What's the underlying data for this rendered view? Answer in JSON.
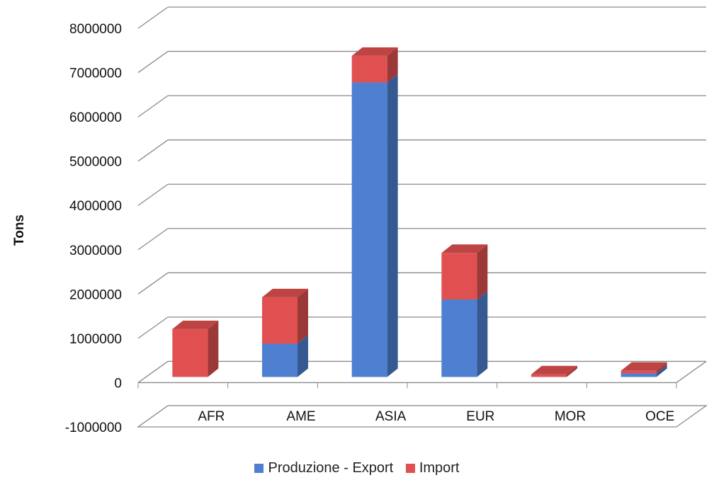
{
  "chart_data": {
    "type": "bar",
    "stacked": true,
    "three_d": true,
    "categories": [
      "AFR",
      "AME",
      "ASIA",
      "EUR",
      "MOR",
      "OCE"
    ],
    "series": [
      {
        "name": "Produzione - Export",
        "color": "#4f7fd0",
        "values": [
          0,
          750000,
          6650000,
          1750000,
          0,
          80000
        ]
      },
      {
        "name": "Import",
        "color": "#e05050",
        "values": [
          1080000,
          1050000,
          600000,
          1050000,
          60000,
          60000
        ]
      }
    ],
    "xlabel": "",
    "ylabel": "Tons",
    "ylim": [
      -1000000,
      8000000
    ],
    "yticks": [
      -1000000,
      0,
      1000000,
      2000000,
      3000000,
      4000000,
      5000000,
      6000000,
      7000000,
      8000000
    ],
    "grid": true,
    "legend_position": "bottom"
  }
}
